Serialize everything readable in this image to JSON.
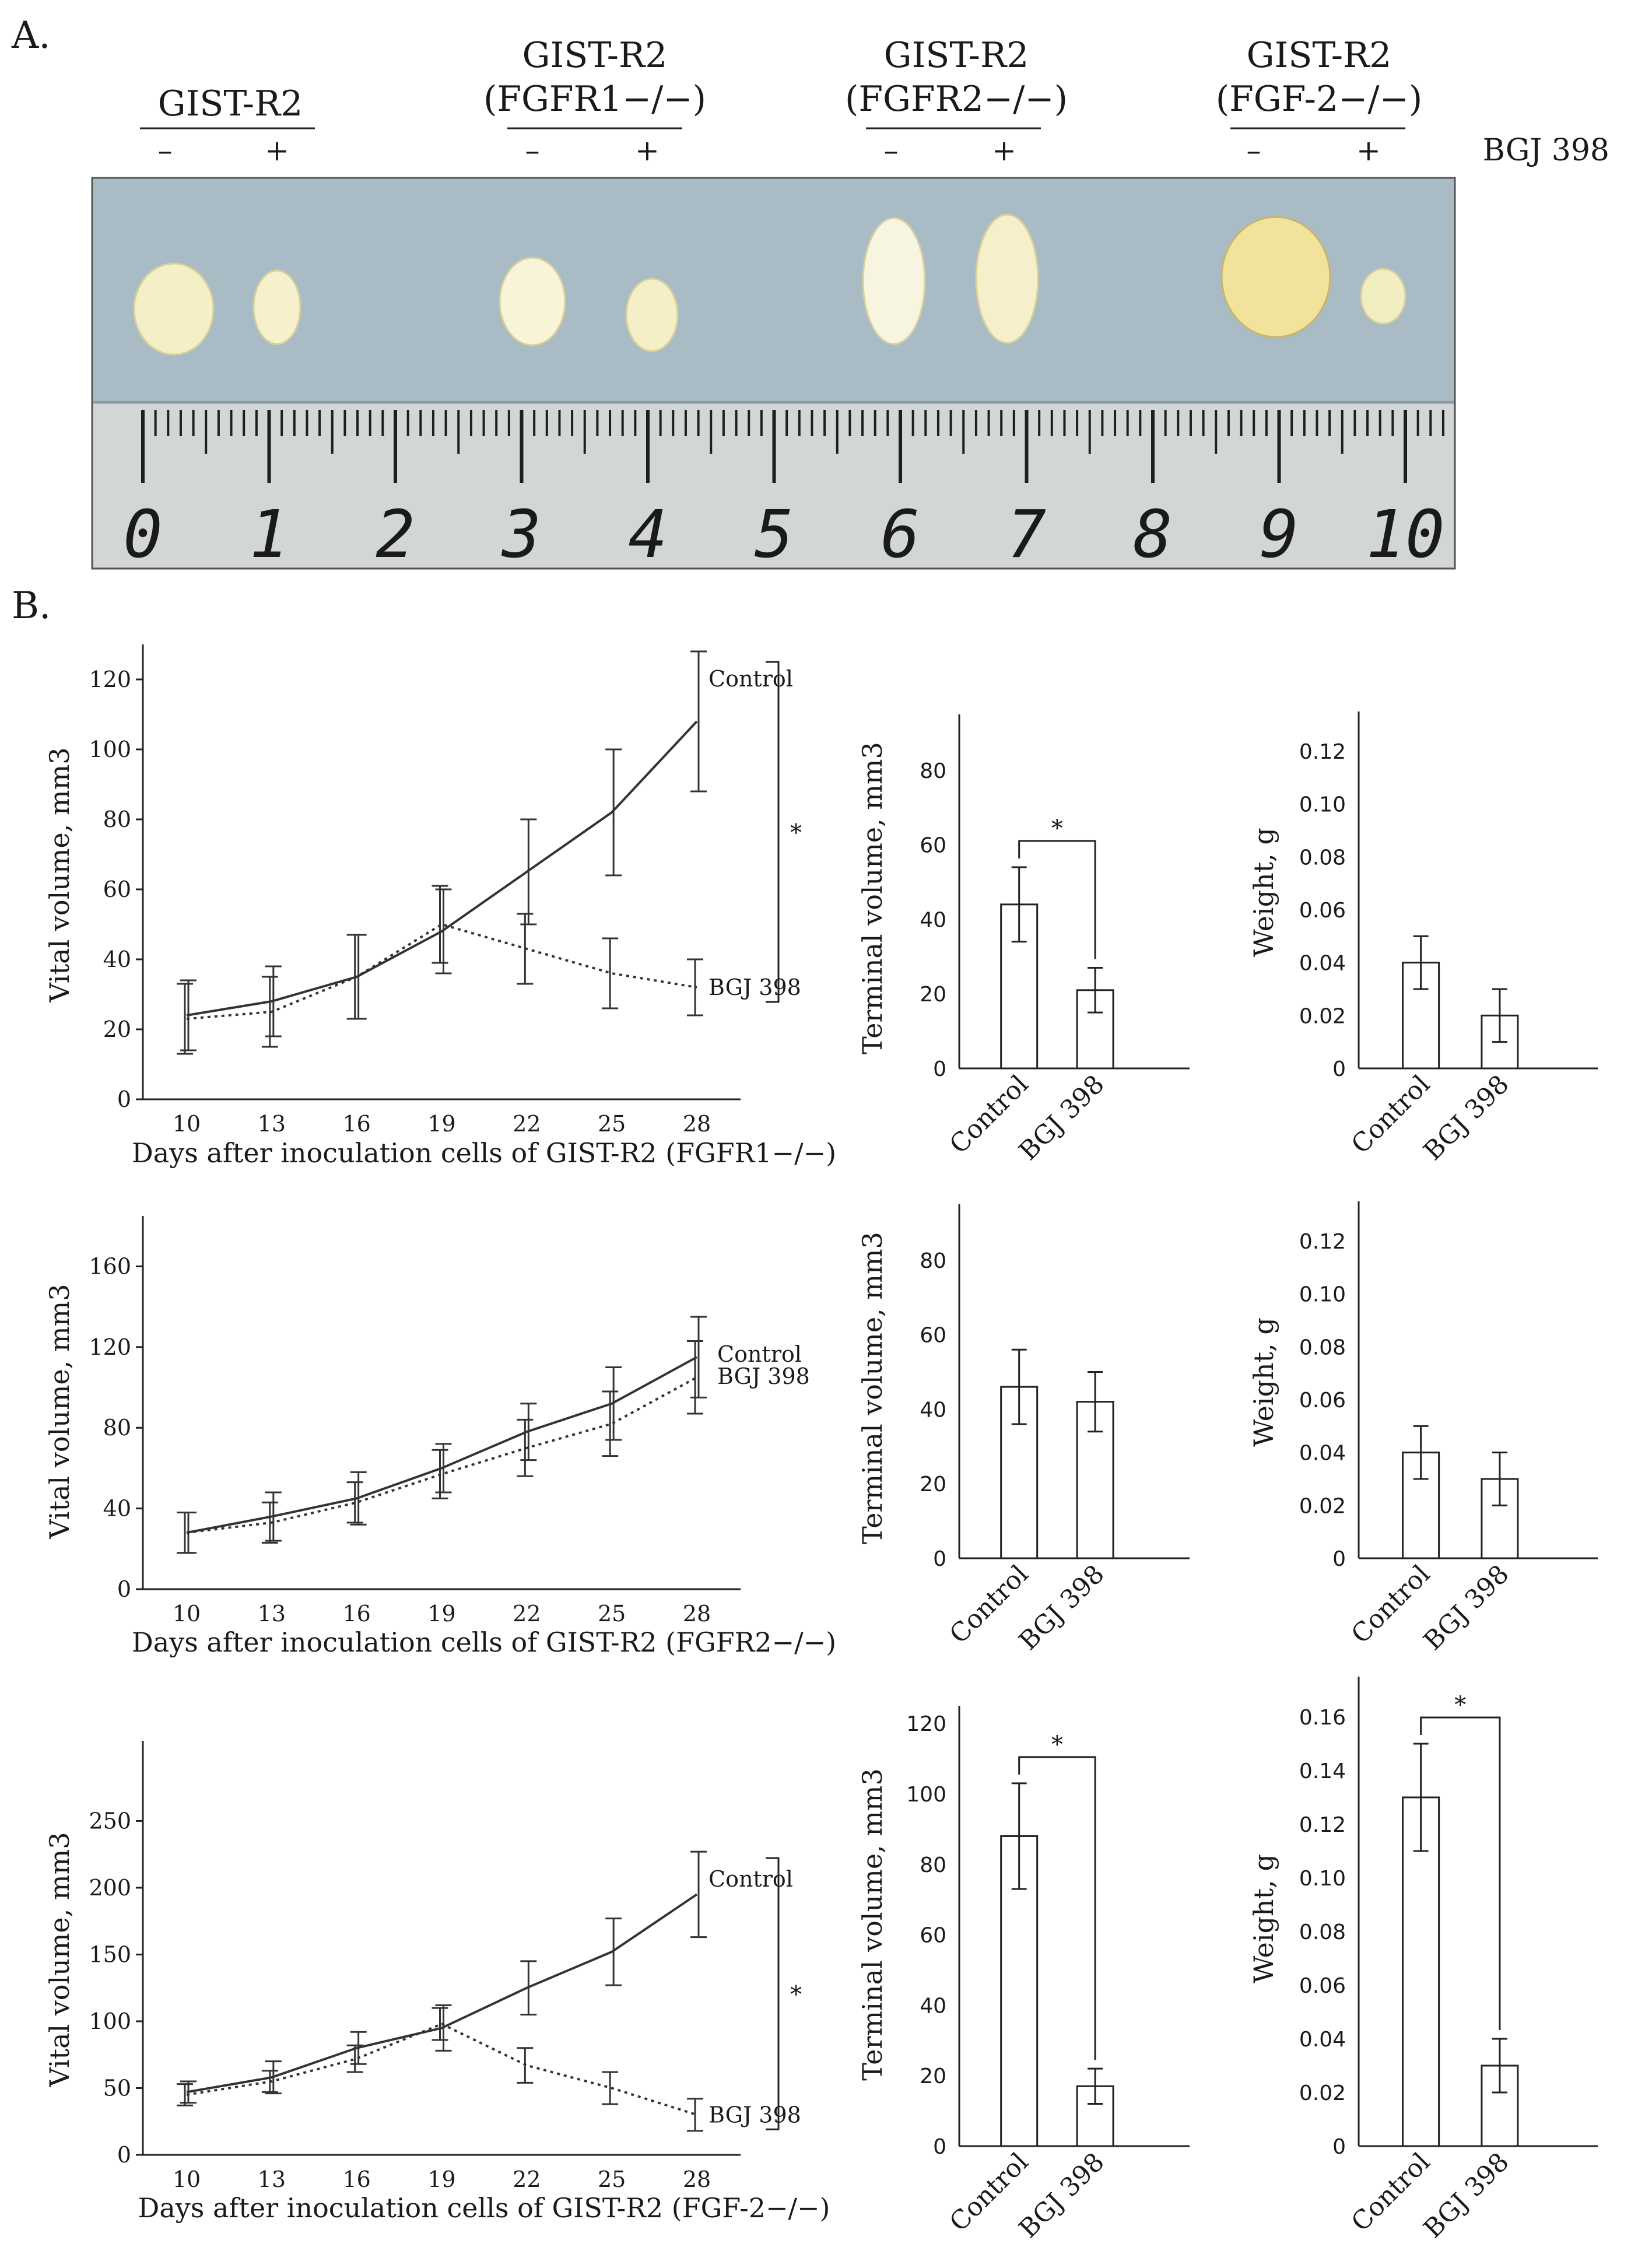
{
  "panel_a": {
    "label": "A.",
    "groups": [
      {
        "title1": "",
        "title2": "GIST-R2",
        "minus": "–",
        "plus": "+"
      },
      {
        "title1": "GIST-R2",
        "title2": "(FGFR1−/−)",
        "minus": "–",
        "plus": "+"
      },
      {
        "title1": "GIST-R2",
        "title2": "(FGFR2−/−)",
        "minus": "–",
        "plus": "+"
      },
      {
        "title1": "GIST-R2",
        "title2": "(FGF-2−/−)",
        "minus": "–",
        "plus": "+"
      }
    ],
    "treatment_label": "BGJ 398",
    "ruler_numbers": [
      "0",
      "1",
      "2",
      "3",
      "4",
      "5",
      "6",
      "7",
      "8",
      "9",
      "10"
    ],
    "colors": {
      "photo_bg": "#a9bcc6",
      "ruler": "#d4d8d9",
      "tumor": "#f3eec3"
    }
  },
  "panel_b": {
    "label": "B."
  },
  "chart_data": [
    {
      "type": "line",
      "row": 1,
      "title": "",
      "xlabel": "Days after inoculation cells of GIST-R2 (FGFR1−/−)",
      "ylabel": "Vital volume, mm3",
      "x": [
        10,
        13,
        16,
        19,
        22,
        25,
        28
      ],
      "ylim": [
        0,
        130
      ],
      "yticks": [
        0,
        20,
        40,
        60,
        80,
        100,
        120
      ],
      "series": [
        {
          "name": "Control",
          "style": "solid",
          "values": [
            24,
            28,
            35,
            48,
            65,
            82,
            108
          ],
          "errors": [
            10,
            10,
            12,
            12,
            15,
            18,
            20
          ]
        },
        {
          "name": "BGJ 398",
          "style": "dotted",
          "values": [
            23,
            25,
            35,
            50,
            43,
            36,
            32
          ],
          "errors": [
            10,
            10,
            12,
            11,
            10,
            10,
            8
          ]
        }
      ],
      "significance": "*"
    },
    {
      "type": "bar",
      "row": 1,
      "categories": [
        "Control",
        "BGJ 398"
      ],
      "values": [
        44,
        21
      ],
      "errors": [
        10,
        6
      ],
      "ylabel": "Terminal volume, mm3",
      "ylim": [
        0,
        95
      ],
      "yticks": [
        0,
        20,
        40,
        60,
        80
      ],
      "significance": "*"
    },
    {
      "type": "bar",
      "row": 1,
      "categories": [
        "Control",
        "BGJ 398"
      ],
      "values": [
        0.04,
        0.02
      ],
      "errors": [
        0.01,
        0.01
      ],
      "ylabel": "Weight, g",
      "ylim": [
        0,
        0.135
      ],
      "yticks": [
        "0",
        "0.02",
        "0.04",
        "0.06",
        "0.08",
        "0.10",
        "0.12"
      ],
      "significance": ""
    },
    {
      "type": "line",
      "row": 2,
      "title": "",
      "xlabel": "Days after inoculation cells of GIST-R2 (FGFR2−/−)",
      "ylabel": "Vital volume, mm3",
      "x": [
        10,
        13,
        16,
        19,
        22,
        25,
        28
      ],
      "ylim": [
        0,
        185
      ],
      "yticks": [
        0,
        40,
        80,
        120,
        160
      ],
      "series": [
        {
          "name": "Control",
          "style": "solid",
          "values": [
            28,
            36,
            45,
            60,
            78,
            92,
            115
          ],
          "errors": [
            10,
            12,
            13,
            12,
            14,
            18,
            20
          ]
        },
        {
          "name": "BGJ 398",
          "style": "dotted",
          "values": [
            28,
            33,
            43,
            57,
            70,
            82,
            105
          ],
          "errors": [
            10,
            10,
            10,
            12,
            14,
            16,
            18
          ]
        }
      ],
      "significance": ""
    },
    {
      "type": "bar",
      "row": 2,
      "categories": [
        "Control",
        "BGJ 398"
      ],
      "values": [
        46,
        42
      ],
      "errors": [
        10,
        8
      ],
      "ylabel": "Terminal volume, mm3",
      "ylim": [
        0,
        95
      ],
      "yticks": [
        0,
        20,
        40,
        60,
        80
      ],
      "significance": ""
    },
    {
      "type": "bar",
      "row": 2,
      "categories": [
        "Control",
        "BGJ 398"
      ],
      "values": [
        0.04,
        0.03
      ],
      "errors": [
        0.01,
        0.01
      ],
      "ylabel": "Weight, g",
      "ylim": [
        0,
        0.135
      ],
      "yticks": [
        "0",
        "0.02",
        "0.04",
        "0.06",
        "0.08",
        "0.10",
        "0.12"
      ],
      "significance": ""
    },
    {
      "type": "line",
      "row": 3,
      "title": "",
      "xlabel": "Days after inoculation cells of GIST-R2 (FGF-2−/−)",
      "ylabel": "Vital volume, mm3",
      "x": [
        10,
        13,
        16,
        19,
        22,
        25,
        28
      ],
      "ylim": [
        0,
        310
      ],
      "yticks": [
        0,
        50,
        100,
        150,
        200,
        250
      ],
      "series": [
        {
          "name": "Control",
          "style": "solid",
          "values": [
            47,
            58,
            80,
            95,
            125,
            152,
            195
          ],
          "errors": [
            8,
            12,
            12,
            17,
            20,
            25,
            32
          ]
        },
        {
          "name": "BGJ 398",
          "style": "dotted",
          "values": [
            45,
            55,
            72,
            98,
            67,
            50,
            30
          ],
          "errors": [
            8,
            8,
            10,
            12,
            13,
            12,
            12
          ]
        }
      ],
      "significance": "*"
    },
    {
      "type": "bar",
      "row": 3,
      "categories": [
        "Control",
        "BGJ 398"
      ],
      "values": [
        88,
        17
      ],
      "errors": [
        15,
        5
      ],
      "ylabel": "Terminal volume, mm3",
      "ylim": [
        0,
        125
      ],
      "yticks": [
        0,
        20,
        40,
        60,
        80,
        100,
        120
      ],
      "significance": "*"
    },
    {
      "type": "bar",
      "row": 3,
      "categories": [
        "Control",
        "BGJ 398"
      ],
      "values": [
        0.13,
        0.03
      ],
      "errors": [
        0.02,
        0.01
      ],
      "ylabel": "Weight, g",
      "ylim": [
        0,
        0.175
      ],
      "yticks": [
        "0",
        "0.02",
        "0.04",
        "0.06",
        "0.08",
        "0.10",
        "0.12",
        "0.14",
        "0.16"
      ],
      "significance": "*"
    }
  ]
}
